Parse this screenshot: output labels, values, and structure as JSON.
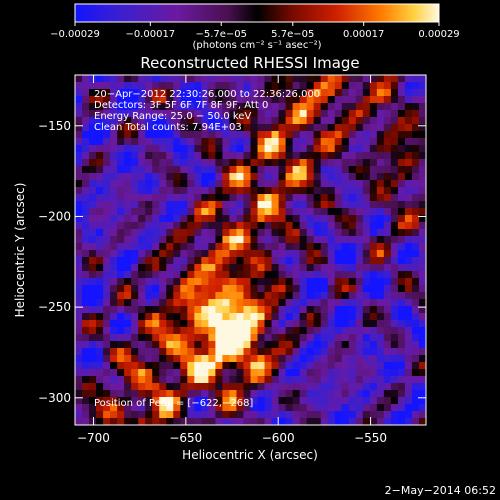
{
  "chart_data": {
    "type": "heatmap",
    "title": "Reconstructed RHESSI Image",
    "xlabel": "Heliocentric X (arcsec)",
    "ylabel": "Heliocentric Y (arcsec)",
    "xlim": [
      -710,
      -520
    ],
    "ylim": [
      -315,
      -122
    ],
    "x_ticks": [
      {
        "value": -700,
        "label": "−700"
      },
      {
        "value": -650,
        "label": "−650"
      },
      {
        "value": -600,
        "label": "−600"
      },
      {
        "value": -550,
        "label": "−550"
      }
    ],
    "y_ticks": [
      {
        "value": -150,
        "label": "−150"
      },
      {
        "value": -200,
        "label": "−200"
      },
      {
        "value": -250,
        "label": "−250"
      },
      {
        "value": -300,
        "label": "−300"
      }
    ],
    "colorbar": {
      "min": -0.00029,
      "max": 0.00029,
      "units": "(photons cm⁻² s⁻¹ asec⁻²)",
      "ticks": [
        {
          "value": -0.00029,
          "label": "−0.00029"
        },
        {
          "value": -0.00017,
          "label": "−0.00017"
        },
        {
          "value": -5.7e-05,
          "label": "−5.7e−05"
        },
        {
          "value": 5.7e-05,
          "label": "5.7e−05"
        },
        {
          "value": 0.00017,
          "label": "0.00017"
        },
        {
          "value": 0.00029,
          "label": "0.00029"
        }
      ]
    },
    "annotations": [
      "20−Apr−2012 22:30:26.000 to 22:36:26.000",
      "Detectors: 3F 5F 6F 7F 8F 9F, Att 0",
      "Energy Range: 25.0 − 50.0 keV",
      "Clean     Total counts: 7.94E+03"
    ],
    "peak_label": "Position of Peak = [−622,−268]",
    "peak": {
      "x": -622,
      "y": -268
    },
    "footer_date": "2−May−2014 06:52"
  }
}
